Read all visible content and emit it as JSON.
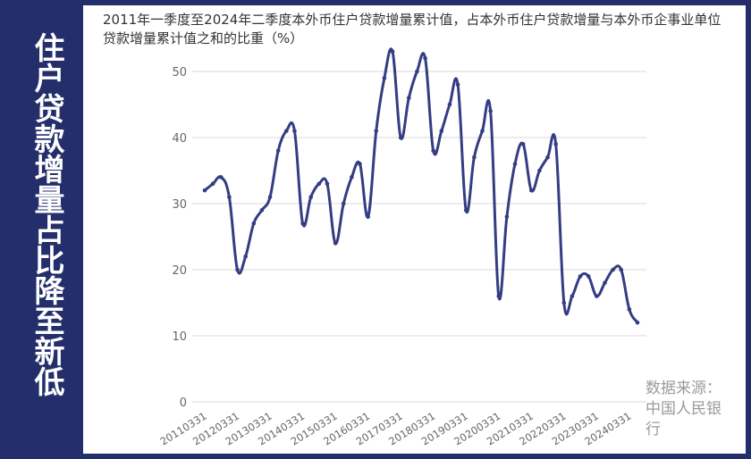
{
  "side_title": "住户贷款增量占比降至新低",
  "source": "数据来源：中国人民银行",
  "colors": {
    "background": "#232e6b",
    "line": "#333d82",
    "grid": "#d9d9d9"
  },
  "chart_data": {
    "type": "line",
    "title": "2011年一季度至2024年二季度本外币住户贷款增量累计值，占本外币住户贷款增量与本外币企事业单位贷款增量累计值之和的比重（%）",
    "xlabel": "",
    "ylabel": "",
    "ylim": [
      0,
      50
    ],
    "yticks": [
      0,
      10,
      20,
      30,
      40,
      50
    ],
    "grid": true,
    "legend": "none",
    "tick_labels": [
      "20110331",
      "20120331",
      "20130331",
      "20140331",
      "20150331",
      "20160331",
      "20170331",
      "20180331",
      "20190331",
      "20200331",
      "20210331",
      "20220331",
      "20230331",
      "20240331"
    ],
    "x": [
      "20110331",
      "20110630",
      "20110930",
      "20111231",
      "20120331",
      "20120630",
      "20120930",
      "20121231",
      "20130331",
      "20130630",
      "20130930",
      "20131231",
      "20140331",
      "20140630",
      "20140930",
      "20141231",
      "20150331",
      "20150630",
      "20150930",
      "20151231",
      "20160331",
      "20160630",
      "20160930",
      "20161231",
      "20170331",
      "20170630",
      "20170930",
      "20171231",
      "20180331",
      "20180630",
      "20180930",
      "20181231",
      "20190331",
      "20190630",
      "20190930",
      "20191231",
      "20200331",
      "20200630",
      "20200930",
      "20201231",
      "20210331",
      "20210630",
      "20210930",
      "20211231",
      "20220331",
      "20220630",
      "20220930",
      "20221231",
      "20230331",
      "20230630",
      "20230930",
      "20231231",
      "20240331",
      "20240630"
    ],
    "series": [
      {
        "values": [
          32,
          33,
          34,
          31,
          20,
          22,
          27,
          29,
          31,
          38,
          41,
          41,
          27,
          31,
          33,
          33,
          24,
          30,
          34,
          36,
          28,
          41,
          49,
          53,
          40,
          46,
          50,
          52,
          38,
          41,
          45,
          48,
          29,
          37,
          41,
          44,
          16,
          28,
          36,
          39,
          32,
          35,
          37,
          39,
          15,
          16,
          19,
          19,
          16,
          18,
          20,
          20,
          14,
          12
        ]
      }
    ]
  }
}
